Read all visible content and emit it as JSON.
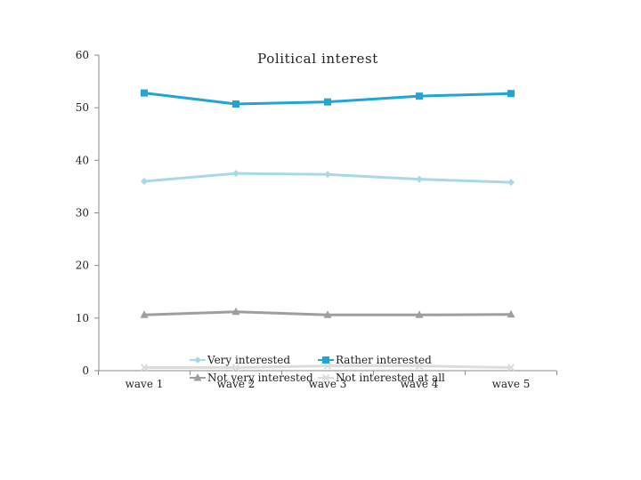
{
  "chart_data": {
    "type": "line",
    "title": "Political interest",
    "xlabel": "",
    "ylabel": "",
    "categories": [
      "wave 1",
      "wave 2",
      "wave 3",
      "wave 4",
      "wave 5"
    ],
    "yticks": [
      "0",
      "10",
      "20",
      "30",
      "40",
      "50",
      "60"
    ],
    "ylim": [
      0,
      60
    ],
    "series": [
      {
        "name": "Very interested",
        "values": [
          36.0,
          37.5,
          37.3,
          36.4,
          35.8
        ],
        "color": "#a9d9e6",
        "marker": "diamond"
      },
      {
        "name": "Rather interested",
        "values": [
          52.8,
          50.7,
          51.1,
          52.2,
          52.7
        ],
        "color": "#22a4d6",
        "marker": "square"
      },
      {
        "name": "Not very interested",
        "values": [
          10.6,
          11.2,
          10.6,
          10.6,
          10.7
        ],
        "color": "#9e9e9e",
        "marker": "triangle"
      },
      {
        "name": "Not interested at all",
        "values": [
          0.6,
          0.6,
          0.9,
          0.9,
          0.6
        ],
        "color": "#dcdcdc",
        "marker": "x"
      }
    ],
    "legend": "bottom",
    "grid": false
  }
}
